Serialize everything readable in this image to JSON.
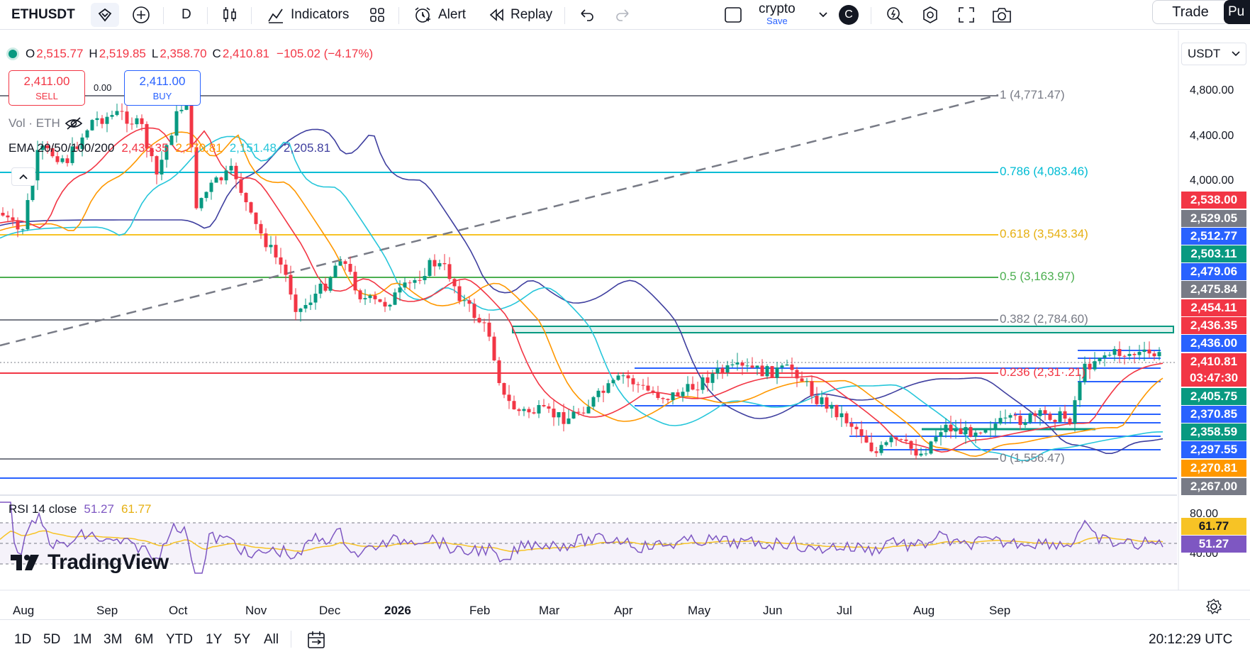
{
  "toolbar": {
    "symbol": "ETHUSDT",
    "interval": "D",
    "indicators_label": "Indicators",
    "alert_label": "Alert",
    "replay_label": "Replay",
    "layout_name": "crypto",
    "layout_save": "Save",
    "avatar_letter": "C",
    "trade_label": "Trade",
    "publish_label": "Pu"
  },
  "legend": {
    "open_label": "O",
    "open": "2,515.77",
    "high_label": "H",
    "high": "2,519.85",
    "low_label": "L",
    "low": "2,358.70",
    "close_label": "C",
    "close": "2,410.81",
    "change": "−105.02 (−4.17%)"
  },
  "trade_buttons": {
    "sell_price": "2,411.00",
    "sell_label": "SELL",
    "spread": "0.00",
    "buy_price": "2,411.00",
    "buy_label": "BUY"
  },
  "volume_label": "Vol · ETH",
  "ema": {
    "label": "EMA 20/50/100/200",
    "v20": "2,436.35",
    "v50": "2,270.81",
    "v100": "2,151.48",
    "v200": "2,205.81",
    "colors": {
      "v20": "#f23645",
      "v50": "#ff9800",
      "v100": "#26c6da",
      "v200": "#3f3f9f"
    }
  },
  "fib": {
    "l1": "1 (4,771.47)",
    "l786": "0.786 (4,083.46)",
    "l618": "0.618 (3,543.34)",
    "l5": "0.5 (3,163.97)",
    "l382": "0.382 (2,784.60)",
    "l236": "0.236 (2,31·.21)",
    "l0": "0 (1,556.47)"
  },
  "price_axis": {
    "currency": "USDT",
    "ticks": [
      "4,800.00",
      "4,400.00",
      "4,000.00"
    ],
    "boxes": [
      {
        "text": "2,538.00",
        "color": "#f23645"
      },
      {
        "text": "2,529.05",
        "color": "#787b86"
      },
      {
        "text": "2,512.77",
        "color": "#2962ff"
      },
      {
        "text": "2,503.11",
        "color": "#089981"
      },
      {
        "text": "2,479.06",
        "color": "#2962ff"
      },
      {
        "text": "2,475.84",
        "color": "#787b86"
      },
      {
        "text": "2,454.11",
        "color": "#f23645"
      },
      {
        "text": "2,436.35",
        "color": "#f23645"
      },
      {
        "text": "2,436.00",
        "color": "#2962ff"
      },
      {
        "text": "2,410.81",
        "color": "#f23645"
      },
      {
        "text": "03:47:30",
        "color": "#f23645"
      },
      {
        "text": "2,405.75",
        "color": "#089981"
      },
      {
        "text": "2,370.85",
        "color": "#2962ff"
      },
      {
        "text": "2,358.59",
        "color": "#089981"
      },
      {
        "text": "2,297.55",
        "color": "#2962ff"
      },
      {
        "text": "2,270.81",
        "color": "#ff9800"
      },
      {
        "text": "2,267.00",
        "color": "#787b86"
      }
    ]
  },
  "rsi": {
    "label": "RSI 14 close",
    "value": "51.27",
    "ma": "61.77",
    "ticks": [
      "80.00",
      "40.00"
    ]
  },
  "time_axis": [
    "Aug",
    "Sep",
    "Oct",
    "Nov",
    "Dec",
    "2026",
    "Feb",
    "Mar",
    "Apr",
    "May",
    "Jun",
    "Jul",
    "Aug",
    "Sep"
  ],
  "ranges": [
    "1D",
    "5D",
    "1M",
    "3M",
    "6M",
    "YTD",
    "1Y",
    "5Y",
    "All"
  ],
  "clock": "20:12:29 UTC",
  "brand": "TradingView"
}
